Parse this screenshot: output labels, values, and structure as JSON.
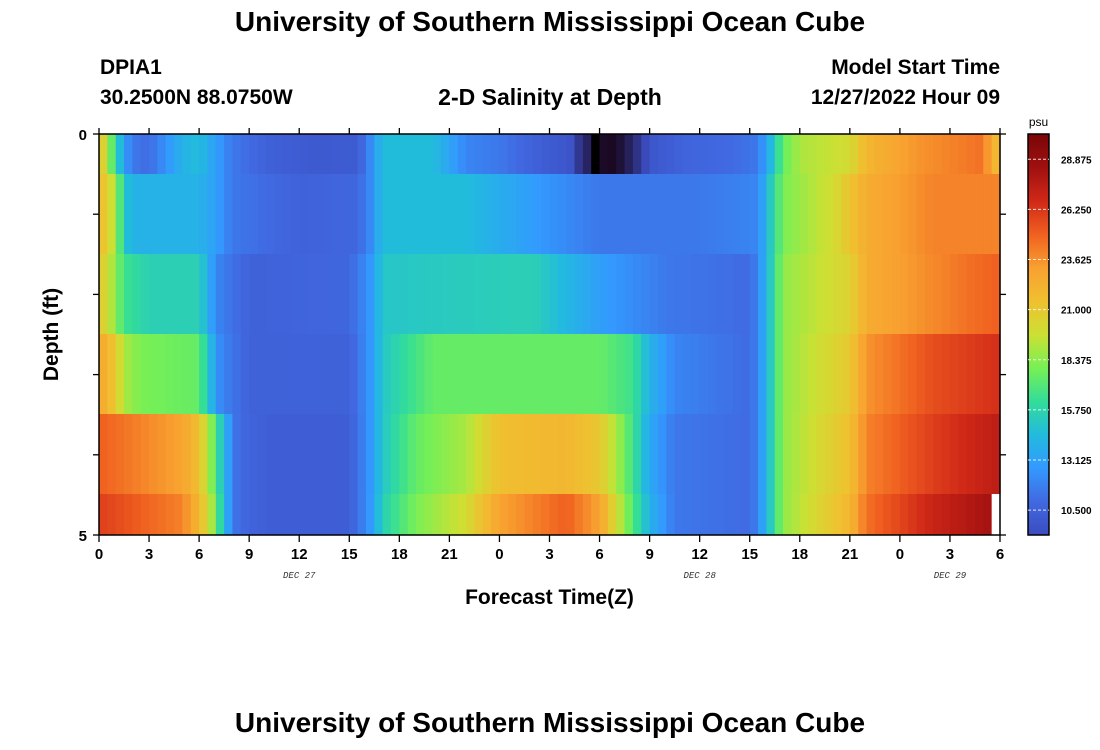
{
  "header": {
    "title": "University of Southern Mississippi Ocean Cube",
    "station_id": "DPIA1",
    "coordinates": "30.2500N  88.0750W",
    "subtitle": "2-D Salinity at Depth",
    "model_start_label": "Model Start Time",
    "model_start_value": "12/27/2022 Hour 09"
  },
  "footer": {
    "title": "University of Southern Mississippi Ocean Cube"
  },
  "colors": {
    "scale": [
      "#3b4cc0",
      "#4169e1",
      "#3399ff",
      "#22bbdd",
      "#33dd99",
      "#77f055",
      "#cce033",
      "#f0c030",
      "#f8a030",
      "#f06020",
      "#d02818",
      "#a01010",
      "#7a0606"
    ],
    "missing_dark": "#1a0820",
    "missing_black": "#000000",
    "missing_white": "#ffffff"
  },
  "chart_data": {
    "type": "heatmap",
    "title": "2-D Salinity at Depth",
    "xlabel": "Forecast Time(Z)",
    "ylabel": "Depth (ft)",
    "x_hours": [
      0,
      54
    ],
    "x_ticks": [
      {
        "h": 0,
        "label": "0"
      },
      {
        "h": 3,
        "label": "3"
      },
      {
        "h": 6,
        "label": "6"
      },
      {
        "h": 9,
        "label": "9"
      },
      {
        "h": 12,
        "label": "12"
      },
      {
        "h": 15,
        "label": "15"
      },
      {
        "h": 18,
        "label": "18"
      },
      {
        "h": 21,
        "label": "21"
      },
      {
        "h": 24,
        "label": "0"
      },
      {
        "h": 27,
        "label": "3"
      },
      {
        "h": 30,
        "label": "6"
      },
      {
        "h": 33,
        "label": "9"
      },
      {
        "h": 36,
        "label": "12"
      },
      {
        "h": 39,
        "label": "15"
      },
      {
        "h": 42,
        "label": "18"
      },
      {
        "h": 45,
        "label": "21"
      },
      {
        "h": 48,
        "label": "0"
      },
      {
        "h": 51,
        "label": "3"
      },
      {
        "h": 54,
        "label": "6"
      }
    ],
    "date_labels": [
      {
        "h": 12,
        "label": "DEC 27"
      },
      {
        "h": 36,
        "label": "DEC 28"
      },
      {
        "h": 51,
        "label": "DEC 29"
      }
    ],
    "y_range": [
      0,
      5
    ],
    "y_ticks": [
      {
        "v": 0,
        "label": "0"
      },
      {
        "v": 5,
        "label": "5"
      }
    ],
    "colorbar": {
      "unit": "psu",
      "range": [
        9.2,
        30.2
      ],
      "labels": [
        "28.875",
        "26.250",
        "23.625",
        "21.000",
        "18.375",
        "15.750",
        "13.125",
        "10.500"
      ]
    },
    "layers": [
      {
        "depth": "0.0-0.5",
        "profile": [
          [
            0,
            22
          ],
          [
            0.5,
            19
          ],
          [
            1,
            16
          ],
          [
            1.5,
            13
          ],
          [
            2,
            11.5
          ],
          [
            3,
            11
          ],
          [
            4,
            12.5
          ],
          [
            5,
            14
          ],
          [
            6,
            14.5
          ],
          [
            7,
            13
          ],
          [
            8,
            11.5
          ],
          [
            10,
            10.5
          ],
          [
            13,
            10
          ],
          [
            15.5,
            10.2
          ],
          [
            16.2,
            12
          ],
          [
            17,
            14.5
          ],
          [
            20,
            14.5
          ],
          [
            22,
            12
          ],
          [
            24,
            11.5
          ],
          [
            26,
            10.5
          ],
          [
            28.2,
            9.7
          ],
          [
            30,
            9.2
          ],
          [
            32.5,
            9.6
          ],
          [
            35,
            10.6
          ],
          [
            38,
            11
          ],
          [
            39.5,
            11.5
          ],
          [
            40.2,
            14
          ],
          [
            41,
            17.5
          ],
          [
            42,
            19
          ],
          [
            45,
            20
          ],
          [
            46,
            22
          ],
          [
            49,
            23.5
          ],
          [
            53,
            24.5
          ],
          [
            53.6,
            22
          ],
          [
            54,
            22
          ]
        ],
        "missing_dark": [
          28.3,
          32.8
        ],
        "missing_black": [
          29.7,
          30.2
        ]
      },
      {
        "depth": "0.5-1.5",
        "profile": [
          [
            0,
            22
          ],
          [
            1,
            19
          ],
          [
            1.5,
            15
          ],
          [
            2,
            14
          ],
          [
            6,
            14
          ],
          [
            7,
            13
          ],
          [
            8,
            11.5
          ],
          [
            12,
            10.5
          ],
          [
            15.5,
            10.8
          ],
          [
            16.2,
            12
          ],
          [
            17,
            14.5
          ],
          [
            22,
            14.5
          ],
          [
            27,
            12.5
          ],
          [
            30,
            11.5
          ],
          [
            36,
            11.5
          ],
          [
            39.5,
            12
          ],
          [
            40.2,
            15
          ],
          [
            41,
            18
          ],
          [
            44,
            20
          ],
          [
            46,
            22.5
          ],
          [
            50,
            24
          ],
          [
            53.6,
            24
          ],
          [
            54,
            24
          ]
        ]
      },
      {
        "depth": "1.5-2.5",
        "profile": [
          [
            0,
            21
          ],
          [
            0.5,
            20
          ],
          [
            1.5,
            16.5
          ],
          [
            3,
            15.5
          ],
          [
            6,
            15.5
          ],
          [
            6.5,
            14
          ],
          [
            7,
            12
          ],
          [
            9,
            10.5
          ],
          [
            15,
            10.8
          ],
          [
            16.2,
            12.5
          ],
          [
            17,
            15
          ],
          [
            26,
            15.5
          ],
          [
            30,
            13
          ],
          [
            34,
            11.5
          ],
          [
            39,
            11
          ],
          [
            39.5,
            12
          ],
          [
            40.2,
            15
          ],
          [
            41,
            18.5
          ],
          [
            45,
            20.5
          ],
          [
            46,
            22.5
          ],
          [
            52,
            24.5
          ],
          [
            54,
            25
          ]
        ]
      },
      {
        "depth": "2.5-3.5",
        "profile": [
          [
            0,
            23
          ],
          [
            1,
            21
          ],
          [
            1.5,
            19
          ],
          [
            2.5,
            18
          ],
          [
            6,
            17.5
          ],
          [
            6.5,
            15
          ],
          [
            7.3,
            12
          ],
          [
            9,
            10.5
          ],
          [
            15,
            10.5
          ],
          [
            16.2,
            12.5
          ],
          [
            17,
            15
          ],
          [
            20,
            17.5
          ],
          [
            30,
            17.5
          ],
          [
            32,
            16.5
          ],
          [
            33,
            14
          ],
          [
            34.5,
            12
          ],
          [
            39,
            11
          ],
          [
            39.5,
            12
          ],
          [
            40.2,
            15
          ],
          [
            41,
            18.5
          ],
          [
            45,
            21
          ],
          [
            46,
            23.5
          ],
          [
            50,
            25.5
          ],
          [
            54,
            26.5
          ]
        ]
      },
      {
        "depth": "3.5-4.5",
        "profile": [
          [
            0,
            25
          ],
          [
            5,
            23
          ],
          [
            6,
            21.5
          ],
          [
            7,
            17
          ],
          [
            7.5,
            14
          ],
          [
            8.3,
            11
          ],
          [
            10,
            10.3
          ],
          [
            15,
            10.3
          ],
          [
            16.2,
            12.5
          ],
          [
            17,
            15
          ],
          [
            19,
            17.5
          ],
          [
            22,
            19
          ],
          [
            24,
            21.5
          ],
          [
            28,
            22
          ],
          [
            30,
            21
          ],
          [
            31,
            19
          ],
          [
            32,
            16.5
          ],
          [
            33,
            13.5
          ],
          [
            34.5,
            11.5
          ],
          [
            39,
            11
          ],
          [
            39.5,
            12
          ],
          [
            40.2,
            15
          ],
          [
            41,
            18.5
          ],
          [
            45,
            21.5
          ],
          [
            46,
            24
          ],
          [
            50,
            26
          ],
          [
            54,
            27.5
          ]
        ]
      },
      {
        "depth": "4.5-5.0",
        "profile": [
          [
            0,
            26
          ],
          [
            5,
            24
          ],
          [
            6,
            22
          ],
          [
            7,
            18
          ],
          [
            7.5,
            14
          ],
          [
            8.3,
            11
          ],
          [
            10,
            10.3
          ],
          [
            15,
            10.3
          ],
          [
            16.2,
            12.5
          ],
          [
            17,
            15.5
          ],
          [
            19,
            18
          ],
          [
            22,
            20
          ],
          [
            24,
            23
          ],
          [
            28,
            25
          ],
          [
            30,
            23
          ],
          [
            31,
            20
          ],
          [
            32,
            17
          ],
          [
            33,
            14
          ],
          [
            34.5,
            11.5
          ],
          [
            39,
            11
          ],
          [
            39.5,
            12
          ],
          [
            40.2,
            15
          ],
          [
            41,
            18.5
          ],
          [
            45,
            22
          ],
          [
            46,
            24.5
          ],
          [
            50,
            27
          ],
          [
            54,
            28.5
          ]
        ],
        "missing_white": [
          53.7,
          54
        ]
      }
    ]
  }
}
